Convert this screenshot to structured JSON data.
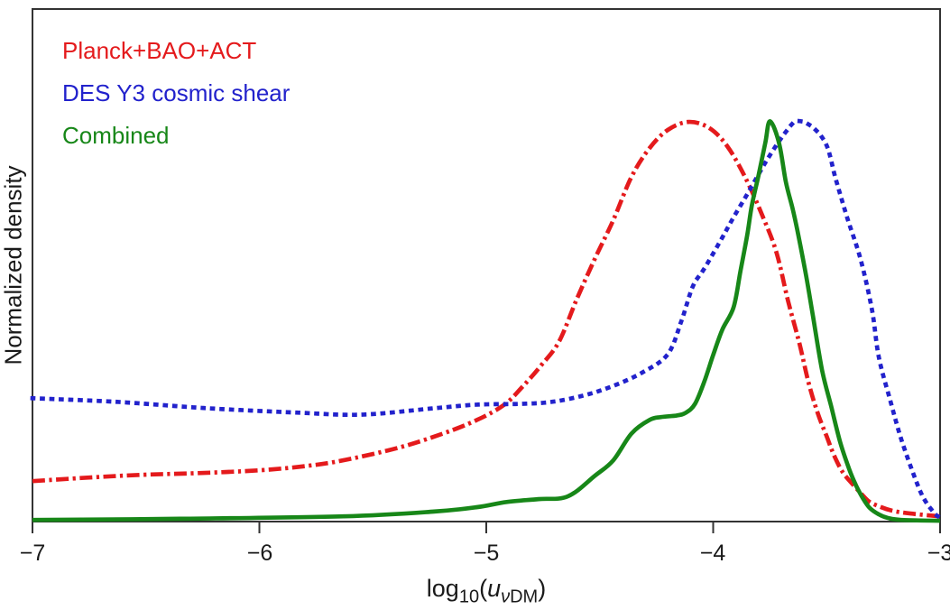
{
  "chart_data": {
    "type": "line",
    "title": "",
    "xlabel": "log10(u_vDM)",
    "xlabel_parts": {
      "log": "log",
      "base": "10",
      "open": "(",
      "var": "u",
      "sub_nu": "ν",
      "sub_dm": "DM",
      "close": ")"
    },
    "ylabel": "Normalized density",
    "xlim": [
      -7,
      -3
    ],
    "ylim": [
      0,
      1.28
    ],
    "x_ticks": [
      -7,
      -6,
      -5,
      -4,
      -3
    ],
    "x_tick_labels": [
      "−7",
      "−6",
      "−5",
      "−4",
      "−3"
    ],
    "y_tick_labels": [],
    "grid": false,
    "legend_position": "top-left",
    "frame_color": "#333333",
    "series": [
      {
        "name": "Planck+BAO+ACT",
        "color": "#e41a1c",
        "style": "dashdot",
        "x": [
          -7.0,
          -6.75,
          -6.51,
          -6.27,
          -6.0,
          -5.79,
          -5.63,
          -5.39,
          -5.19,
          -5.04,
          -4.92,
          -4.84,
          -4.76,
          -4.68,
          -4.6,
          -4.52,
          -4.44,
          -4.36,
          -4.28,
          -4.2,
          -4.11,
          -4.02,
          -3.94,
          -3.86,
          -3.78,
          -3.72,
          -3.67,
          -3.62,
          -3.58,
          -3.54,
          -3.5,
          -3.47,
          -3.43,
          -3.38,
          -3.34,
          -3.31,
          -3.26,
          -3.21,
          -3.13,
          -3.0
        ],
        "y": [
          0.101,
          0.11,
          0.117,
          0.121,
          0.128,
          0.139,
          0.153,
          0.184,
          0.22,
          0.254,
          0.292,
          0.337,
          0.389,
          0.449,
          0.557,
          0.658,
          0.753,
          0.861,
          0.933,
          0.978,
          0.998,
          0.984,
          0.939,
          0.861,
          0.76,
          0.67,
          0.551,
          0.445,
          0.348,
          0.272,
          0.213,
          0.169,
          0.124,
          0.09,
          0.065,
          0.049,
          0.036,
          0.027,
          0.02,
          0.013
        ]
      },
      {
        "name": "DES Y3 cosmic shear",
        "color": "#2222cc",
        "style": "dotted",
        "x": [
          -7.0,
          -6.63,
          -6.23,
          -5.83,
          -5.55,
          -5.23,
          -5.04,
          -4.84,
          -4.71,
          -4.57,
          -4.44,
          -4.31,
          -4.2,
          -4.14,
          -4.09,
          -4.04,
          -3.97,
          -3.91,
          -3.84,
          -3.76,
          -3.68,
          -3.63,
          -3.56,
          -3.5,
          -3.46,
          -3.41,
          -3.35,
          -3.3,
          -3.27,
          -3.22,
          -3.17,
          -3.11,
          -3.07,
          -3.02,
          -3.0
        ],
        "y": [
          0.308,
          0.299,
          0.283,
          0.272,
          0.267,
          0.283,
          0.292,
          0.294,
          0.299,
          0.315,
          0.339,
          0.373,
          0.418,
          0.501,
          0.587,
          0.631,
          0.699,
          0.76,
          0.827,
          0.906,
          0.973,
          1.0,
          0.984,
          0.939,
          0.856,
          0.76,
          0.654,
          0.528,
          0.411,
          0.303,
          0.204,
          0.108,
          0.056,
          0.018,
          0.012
        ]
      },
      {
        "name": "Combined",
        "color": "#178718",
        "style": "solid",
        "x": [
          -7.0,
          -6.35,
          -5.63,
          -5.23,
          -5.04,
          -4.91,
          -4.77,
          -4.64,
          -4.52,
          -4.44,
          -4.36,
          -4.28,
          -4.23,
          -4.16,
          -4.12,
          -4.08,
          -4.04,
          -4.0,
          -3.96,
          -3.91,
          -3.88,
          -3.85,
          -3.83,
          -3.8,
          -3.77,
          -3.75,
          -3.71,
          -3.68,
          -3.65,
          -3.63,
          -3.59,
          -3.56,
          -3.52,
          -3.48,
          -3.44,
          -3.4,
          -3.37,
          -3.34,
          -3.31,
          -3.27,
          -3.23,
          -3.17,
          -3.0
        ],
        "y": [
          0.004,
          0.007,
          0.013,
          0.025,
          0.036,
          0.049,
          0.056,
          0.063,
          0.115,
          0.153,
          0.22,
          0.254,
          0.261,
          0.265,
          0.272,
          0.294,
          0.348,
          0.416,
          0.479,
          0.535,
          0.625,
          0.715,
          0.789,
          0.865,
          0.946,
          1.0,
          0.946,
          0.849,
          0.782,
          0.73,
          0.613,
          0.512,
          0.378,
          0.288,
          0.198,
          0.13,
          0.09,
          0.058,
          0.034,
          0.018,
          0.009,
          0.004,
          0.002
        ]
      }
    ]
  }
}
